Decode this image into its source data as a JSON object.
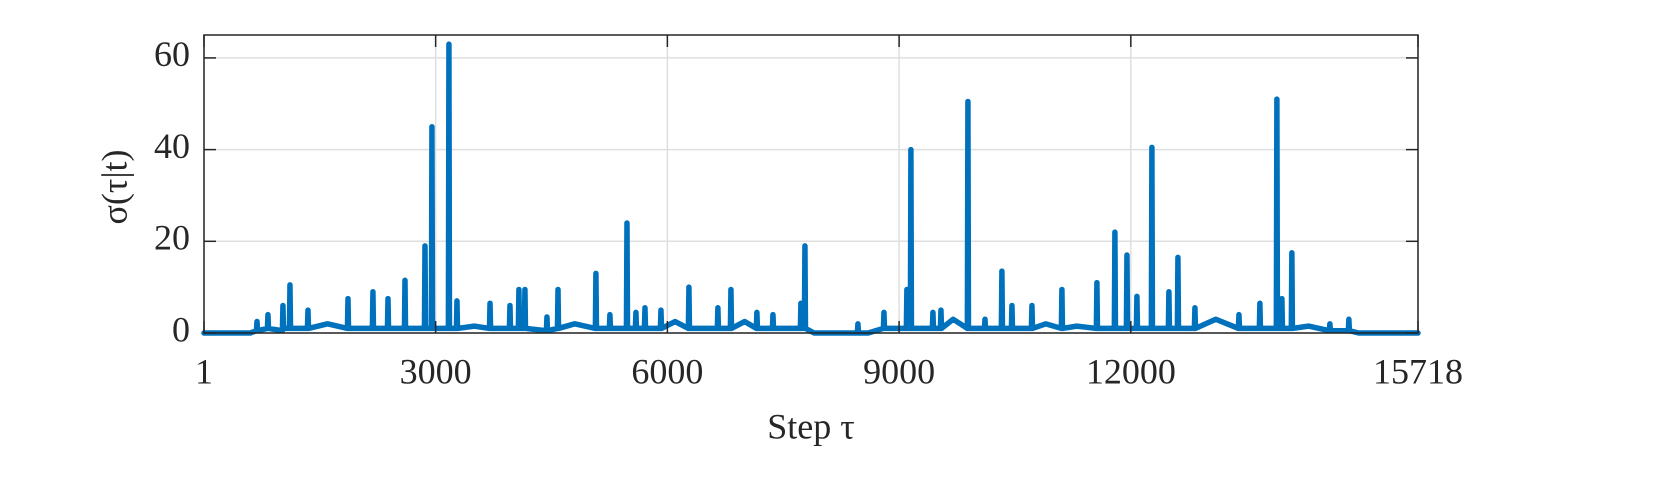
{
  "chart_data": {
    "type": "line",
    "xlabel": "Step τ",
    "ylabel": "σ(τ|t)",
    "xlim": [
      1,
      15718
    ],
    "ylim": [
      0,
      65
    ],
    "xticks": [
      1,
      3000,
      6000,
      9000,
      12000,
      15718
    ],
    "yticks": [
      0,
      20,
      40,
      60
    ],
    "grid": true,
    "color": "#0072bd",
    "x": [
      1,
      600,
      680,
      687,
      694,
      822,
      829,
      836,
      1016,
      1023,
      1030,
      1107,
      1114,
      1121,
      1340,
      1347,
      1354,
      1600,
      1858,
      1865,
      1872,
      2181,
      2188,
      2195,
      2376,
      2383,
      2390,
      2596,
      2603,
      2610,
      2855,
      2862,
      2869,
      2945,
      2952,
      2959,
      3165,
      3172,
      3179,
      3269,
      3276,
      3283,
      3500,
      3697,
      3704,
      3711,
      3955,
      3962,
      3969,
      4071,
      4078,
      4085,
      4149,
      4156,
      4163,
      4434,
      4441,
      4448,
      4577,
      4584,
      4591,
      4800,
      5068,
      5075,
      5082,
      5249,
      5256,
      5263,
      5470,
      5477,
      5484,
      5586,
      5593,
      5600,
      5703,
      5710,
      5717,
      5910,
      5917,
      5924,
      6100,
      6272,
      6279,
      6286,
      6647,
      6654,
      6661,
      6816,
      6823,
      6830,
      7000,
      7152,
      7159,
      7166,
      7360,
      7367,
      7374,
      7722,
      7729,
      7736,
      7774,
      7781,
      7788,
      7900,
      8200,
      8460,
      8467,
      8474,
      8600,
      8797,
      8804,
      8811,
      9094,
      9101,
      9108,
      9146,
      9153,
      9160,
      9431,
      9438,
      9445,
      9535,
      9542,
      9549,
      9700,
      9884,
      9891,
      9898,
      10105,
      10112,
      10119,
      10324,
      10331,
      10338,
      10454,
      10461,
      10468,
      10713,
      10720,
      10727,
      10900,
      11101,
      11108,
      11115,
      11300,
      11554,
      11561,
      11568,
      11787,
      11794,
      11801,
      11943,
      11950,
      11957,
      12072,
      12079,
      12086,
      12266,
      12273,
      12280,
      12486,
      12493,
      12500,
      12603,
      12610,
      12617,
      12823,
      12830,
      12837,
      13100,
      13393,
      13400,
      13407,
      13664,
      13671,
      13678,
      13884,
      13891,
      13898,
      13949,
      13956,
      13963,
      14078,
      14085,
      14092,
      14300,
      14570,
      14577,
      14584,
      14816,
      14823,
      14830,
      14950,
      15718
    ],
    "values": [
      0,
      0,
      0.5,
      2.5,
      0.5,
      1,
      4,
      1,
      0.5,
      6,
      1,
      1,
      10.5,
      1,
      1,
      5,
      1,
      2,
      1,
      7.5,
      1,
      1,
      9,
      1,
      1,
      7.5,
      1,
      1,
      11.5,
      1,
      1,
      19,
      1,
      1,
      45,
      1,
      1,
      63,
      1,
      1,
      7,
      1,
      1.5,
      1,
      6.5,
      1,
      1,
      6,
      1,
      1,
      9.5,
      1,
      1,
      9.5,
      1,
      0.5,
      3.5,
      0.5,
      1,
      9.5,
      1,
      2,
      1,
      13,
      1,
      1,
      4,
      1,
      1,
      24,
      1,
      1,
      4.5,
      1,
      1,
      5.5,
      1,
      1,
      5,
      1,
      2.5,
      1,
      10,
      1,
      1,
      5.5,
      1,
      1,
      9.5,
      1,
      2.5,
      1,
      4.5,
      1,
      1,
      4,
      1,
      1,
      6.5,
      1,
      1,
      19,
      1,
      0,
      0,
      0,
      2,
      0,
      0,
      1,
      4.5,
      1,
      1,
      9.5,
      1,
      1,
      40,
      1,
      1,
      4.5,
      1,
      1,
      5,
      1,
      3,
      1,
      50.5,
      1,
      1,
      3,
      1,
      1,
      13.5,
      1,
      1,
      6,
      1,
      1,
      6,
      1,
      2,
      1,
      9.5,
      1,
      1.5,
      1,
      11,
      1,
      1,
      22,
      1,
      1,
      17,
      1,
      1,
      8,
      1,
      1,
      40.5,
      1,
      1,
      9,
      1,
      1,
      16.5,
      1,
      1,
      5.5,
      1,
      3,
      1,
      4,
      1,
      1,
      6.5,
      1,
      1,
      51,
      1,
      1,
      7.5,
      1,
      1,
      17.5,
      1,
      1.5,
      0.5,
      2,
      0.5,
      0.5,
      3,
      0.5,
      0,
      0
    ]
  }
}
